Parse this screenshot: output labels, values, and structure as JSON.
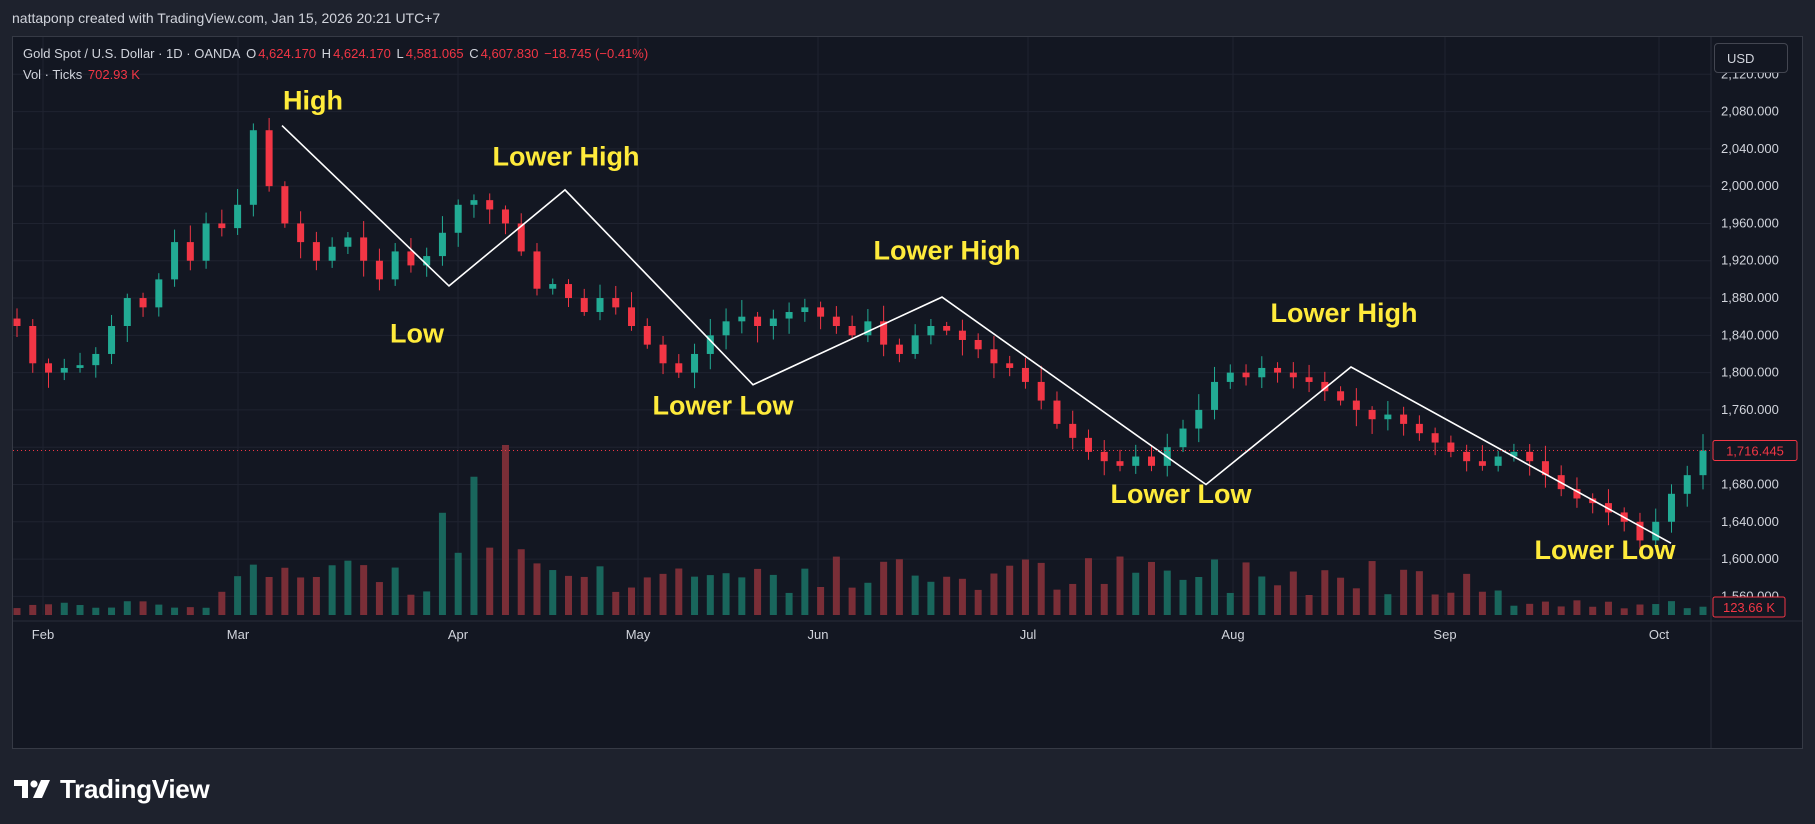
{
  "header": {
    "attribution": "nattaponp created with TradingView.com, Jan 15, 2026 20:21 UTC+7"
  },
  "legend": {
    "symbol": "Gold Spot / U.S. Dollar · 1D · OANDA",
    "open_label": "O",
    "open": "4,624.170",
    "high_label": "H",
    "high": "4,624.170",
    "low_label": "L",
    "low": "4,581.065",
    "close_label": "C",
    "close": "4,607.830",
    "change": "−18.745 (−0.41%)",
    "volume_label": "Vol · Ticks",
    "volume": "702.93 K"
  },
  "toolbar": {
    "currency": "USD"
  },
  "footer": {
    "brand": "TradingView"
  },
  "colors": {
    "up": "#22ab94",
    "down": "#f23645",
    "annotation": "#ffeb3b",
    "line": "#ffffff",
    "background": "#131722"
  },
  "chart_data": {
    "type": "candlestick",
    "price_axis": {
      "ticks": [
        "2,120.000",
        "2,080.000",
        "2,040.000",
        "2,000.000",
        "1,960.000",
        "1,920.000",
        "1,880.000",
        "1,840.000",
        "1,800.000",
        "1,760.000",
        "1,720.000",
        "1,680.000",
        "1,640.000",
        "1,600.000",
        "1,560.000"
      ],
      "range": [
        1540,
        2160
      ]
    },
    "time_axis": {
      "ticks": [
        "Feb",
        "Mar",
        "Apr",
        "May",
        "Jun",
        "Jul",
        "Aug",
        "Sep",
        "Oct"
      ]
    },
    "last_price": "1,716.445",
    "last_volume": "123.66 K",
    "close_path": [
      1850,
      1810,
      1800,
      1805,
      1808,
      1820,
      1850,
      1880,
      1870,
      1900,
      1940,
      1920,
      1960,
      1955,
      1980,
      2060,
      2000,
      1960,
      1940,
      1920,
      1935,
      1945,
      1920,
      1900,
      1930,
      1915,
      1925,
      1950,
      1980,
      1985,
      1975,
      1960,
      1930,
      1890,
      1895,
      1880,
      1865,
      1880,
      1870,
      1850,
      1830,
      1810,
      1800,
      1820,
      1840,
      1855,
      1860,
      1850,
      1858,
      1865,
      1870,
      1860,
      1850,
      1840,
      1855,
      1830,
      1820,
      1840,
      1850,
      1845,
      1835,
      1825,
      1810,
      1805,
      1790,
      1770,
      1745,
      1730,
      1715,
      1705,
      1700,
      1710,
      1700,
      1720,
      1740,
      1760,
      1790,
      1800,
      1795,
      1805,
      1800,
      1795,
      1790,
      1780,
      1770,
      1760,
      1750,
      1755,
      1745,
      1735,
      1725,
      1715,
      1705,
      1700,
      1710,
      1715,
      1705,
      1690,
      1675,
      1665,
      1660,
      1650,
      1640,
      1620,
      1640,
      1670,
      1690,
      1716.445
    ],
    "annotations": [
      {
        "text": "High",
        "price": 2093
      },
      {
        "text": "Low",
        "price": 1843
      },
      {
        "text": "Lower High",
        "price": 2033
      },
      {
        "text": "Lower Low",
        "price": 1766
      },
      {
        "text": "Lower High",
        "price": 1932
      },
      {
        "text": "Lower Low",
        "price": 1671
      },
      {
        "text": "Lower High",
        "price": 1865
      },
      {
        "text": "Lower Low",
        "price": 1611
      }
    ],
    "swing_line_prices": [
      2065,
      1893,
      1996,
      1787,
      1881,
      1680,
      1806,
      1617
    ]
  }
}
